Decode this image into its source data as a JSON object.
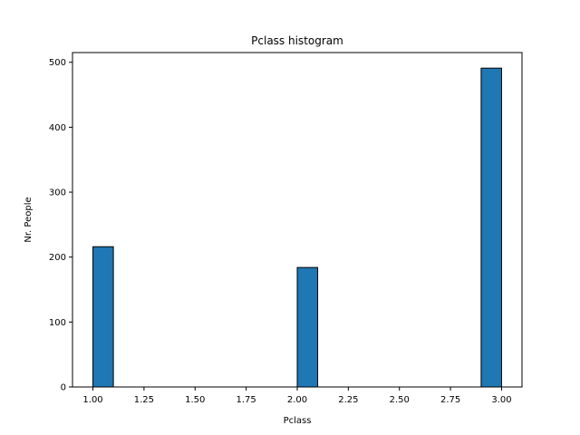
{
  "chart_data": {
    "type": "bar",
    "title": "Pclass histogram",
    "xlabel": "Pclass",
    "ylabel": "Nr. People",
    "bins": [
      {
        "x0": 1.0,
        "x1": 1.1,
        "value": 216
      },
      {
        "x0": 2.0,
        "x1": 2.1,
        "value": 184
      },
      {
        "x0": 2.9,
        "x1": 3.0,
        "value": 491
      }
    ],
    "xlim": [
      0.9,
      3.1
    ],
    "ylim": [
      0,
      515
    ],
    "xticks": [
      1.0,
      1.25,
      1.5,
      1.75,
      2.0,
      2.25,
      2.5,
      2.75,
      3.0
    ],
    "xtick_labels": [
      "1.00",
      "1.25",
      "1.50",
      "1.75",
      "2.00",
      "2.25",
      "2.50",
      "2.75",
      "3.00"
    ],
    "yticks": [
      0,
      100,
      200,
      300,
      400,
      500
    ],
    "ytick_labels": [
      "0",
      "100",
      "200",
      "300",
      "400",
      "500"
    ],
    "grid": false,
    "bar_color": "#1f77b4",
    "edge_color": "#000000"
  }
}
